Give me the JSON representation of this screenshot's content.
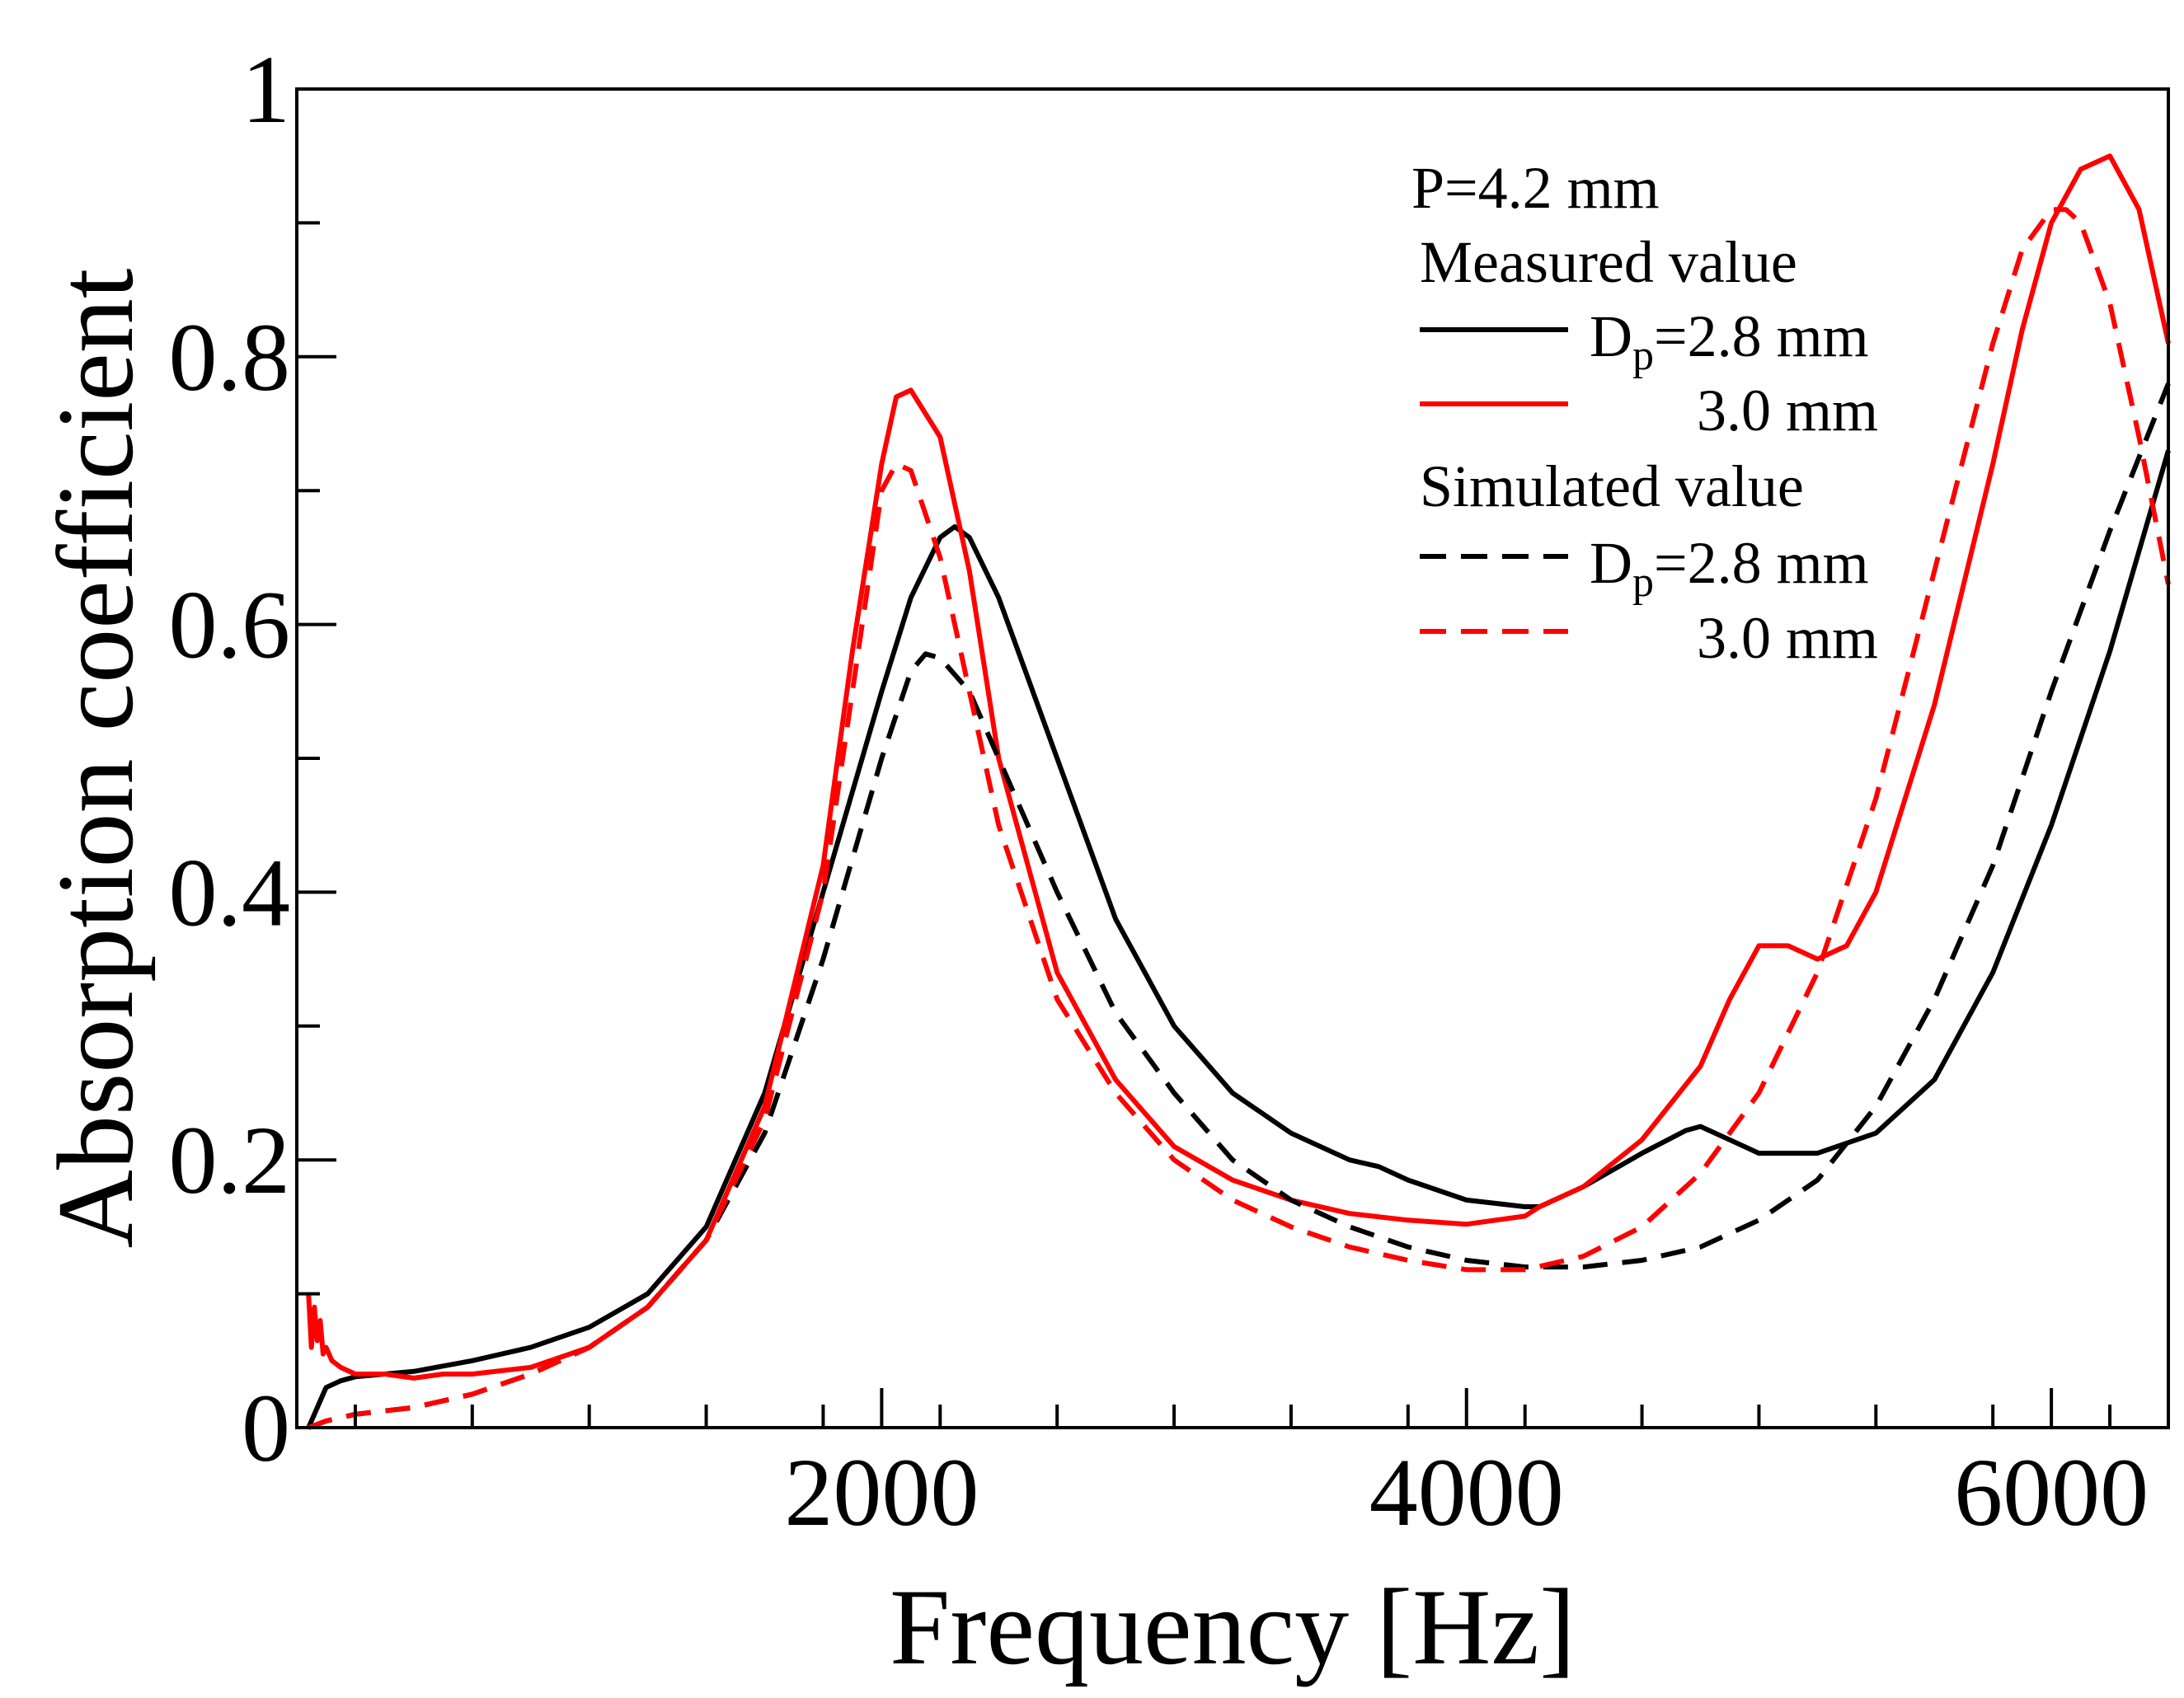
{
  "chart_data": {
    "type": "line",
    "title": "",
    "xlabel": "Frequency [Hz]",
    "ylabel": "Absorption coefficient",
    "xlim": [
      0,
      6400
    ],
    "ylim": [
      0,
      1
    ],
    "x_ticks": [
      2000,
      4000,
      6000
    ],
    "x_tick_labels": [
      "2000",
      "4000",
      "6000"
    ],
    "y_ticks": [
      0,
      0.2,
      0.4,
      0.6,
      0.8,
      1
    ],
    "y_tick_labels": [
      "0",
      "0.2",
      "0.4",
      "0.6",
      "0.8",
      "1"
    ],
    "grid": false,
    "legend_position": "top-right",
    "legend": {
      "parameter": "P=4.2 mm",
      "measured_heading": "Measured value",
      "simulated_heading": "Simulated value",
      "entry_1": "=2.8 mm",
      "entry_2": "3.0 mm",
      "entry_3": "=2.8 mm",
      "entry_4": "3.0 mm",
      "symbol": "D",
      "subscript": "p"
    },
    "series": [
      {
        "name": "Measured value D_p=2.8 mm",
        "color": "#000000",
        "dash": "solid",
        "x": [
          40,
          60,
          80,
          100,
          150,
          200,
          300,
          400,
          500,
          600,
          700,
          800,
          1000,
          1200,
          1400,
          1600,
          1800,
          2000,
          2100,
          2200,
          2250,
          2300,
          2400,
          2600,
          2800,
          3000,
          3200,
          3400,
          3600,
          3700,
          3800,
          4000,
          4200,
          4250,
          4400,
          4600,
          4750,
          4800,
          4900,
          5000,
          5200,
          5400,
          5600,
          5800,
          6000,
          6200,
          6400
        ],
        "y": [
          0.0,
          0.01,
          0.02,
          0.03,
          0.035,
          0.038,
          0.04,
          0.042,
          0.046,
          0.05,
          0.055,
          0.06,
          0.075,
          0.1,
          0.15,
          0.25,
          0.4,
          0.55,
          0.62,
          0.665,
          0.673,
          0.665,
          0.62,
          0.5,
          0.38,
          0.3,
          0.25,
          0.22,
          0.2,
          0.195,
          0.185,
          0.17,
          0.165,
          0.165,
          0.18,
          0.205,
          0.222,
          0.225,
          0.215,
          0.205,
          0.205,
          0.22,
          0.26,
          0.34,
          0.45,
          0.58,
          0.73
        ]
      },
      {
        "name": "Measured value 3.0 mm",
        "color": "#ff0000",
        "dash": "solid",
        "x": [
          40,
          50,
          60,
          70,
          80,
          90,
          100,
          120,
          150,
          200,
          300,
          400,
          500,
          600,
          800,
          1000,
          1200,
          1400,
          1600,
          1800,
          1900,
          2000,
          2050,
          2100,
          2200,
          2300,
          2400,
          2600,
          2800,
          3000,
          3200,
          3400,
          3600,
          3800,
          4000,
          4200,
          4250,
          4400,
          4600,
          4800,
          4900,
          5000,
          5100,
          5200,
          5300,
          5400,
          5600,
          5800,
          5900,
          6000,
          6100,
          6200,
          6300,
          6400
        ],
        "y": [
          0.1,
          0.06,
          0.09,
          0.065,
          0.08,
          0.055,
          0.06,
          0.05,
          0.045,
          0.04,
          0.04,
          0.037,
          0.04,
          0.04,
          0.045,
          0.06,
          0.09,
          0.14,
          0.24,
          0.42,
          0.58,
          0.72,
          0.77,
          0.775,
          0.74,
          0.64,
          0.5,
          0.34,
          0.26,
          0.21,
          0.185,
          0.17,
          0.16,
          0.155,
          0.152,
          0.158,
          0.165,
          0.18,
          0.215,
          0.27,
          0.32,
          0.36,
          0.36,
          0.35,
          0.36,
          0.4,
          0.54,
          0.72,
          0.82,
          0.9,
          0.94,
          0.95,
          0.91,
          0.81
        ]
      },
      {
        "name": "Simulated value D_p=2.8 mm",
        "color": "#000000",
        "dash": "dashed",
        "x": [
          40,
          100,
          200,
          400,
          600,
          800,
          1000,
          1200,
          1400,
          1600,
          1800,
          2000,
          2100,
          2150,
          2200,
          2300,
          2400,
          2600,
          2800,
          3000,
          3200,
          3400,
          3600,
          3800,
          4000,
          4200,
          4400,
          4600,
          4800,
          5000,
          5200,
          5400,
          5600,
          5800,
          6000,
          6200,
          6400
        ],
        "y": [
          0.0,
          0.005,
          0.01,
          0.015,
          0.025,
          0.04,
          0.06,
          0.09,
          0.14,
          0.22,
          0.35,
          0.5,
          0.565,
          0.578,
          0.575,
          0.55,
          0.5,
          0.4,
          0.31,
          0.25,
          0.2,
          0.17,
          0.15,
          0.135,
          0.125,
          0.12,
          0.12,
          0.125,
          0.135,
          0.155,
          0.185,
          0.24,
          0.32,
          0.42,
          0.55,
          0.67,
          0.78
        ]
      },
      {
        "name": "Simulated value 3.0 mm",
        "color": "#ff0000",
        "dash": "dashed",
        "x": [
          40,
          100,
          200,
          400,
          600,
          800,
          1000,
          1200,
          1400,
          1600,
          1800,
          1900,
          2000,
          2050,
          2100,
          2200,
          2300,
          2400,
          2600,
          2800,
          3000,
          3200,
          3400,
          3600,
          3800,
          4000,
          4200,
          4400,
          4600,
          4800,
          5000,
          5200,
          5400,
          5600,
          5800,
          5900,
          6000,
          6050,
          6100,
          6200,
          6300,
          6400
        ],
        "y": [
          0.0,
          0.005,
          0.01,
          0.015,
          0.025,
          0.04,
          0.06,
          0.09,
          0.14,
          0.23,
          0.4,
          0.55,
          0.7,
          0.72,
          0.715,
          0.65,
          0.55,
          0.45,
          0.32,
          0.25,
          0.2,
          0.17,
          0.15,
          0.135,
          0.125,
          0.118,
          0.118,
          0.128,
          0.15,
          0.19,
          0.25,
          0.34,
          0.47,
          0.64,
          0.81,
          0.88,
          0.91,
          0.91,
          0.9,
          0.84,
          0.74,
          0.63
        ]
      }
    ]
  }
}
